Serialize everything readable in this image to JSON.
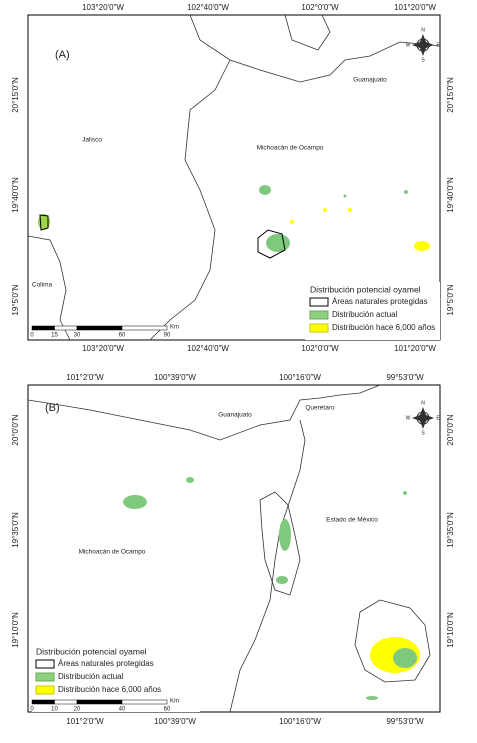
{
  "panels": [
    {
      "label": "(A)",
      "top_ticks": [
        "103°20'0\"W",
        "102°40'0\"W",
        "102°0'0\"W",
        "101°20'0\"W"
      ],
      "bottom_ticks": [
        "103°20'0\"W",
        "102°40'0\"W",
        "102°0'0\"W",
        "101°20'0\"W"
      ],
      "left_ticks": [
        "20°15'0\"N",
        "19°40'0\"N",
        "19°5'0\"N"
      ],
      "right_ticks": [
        "20°15'0\"N",
        "19°40'0\"N",
        "19°5'0\"N"
      ],
      "regions": [
        "Guanajuato",
        "Jalisco",
        "Michoacán de Ocampo",
        "Colima"
      ],
      "legend": {
        "title": "Distribución potencial oyamel",
        "items": [
          "Áreas naturales protegidas",
          "Distribución actual",
          "Distribución hace 6,000 años"
        ]
      },
      "scale": {
        "ticks": [
          "0",
          "15",
          "30",
          "60",
          "90"
        ],
        "unit": "Km"
      },
      "compass": [
        "N",
        "E",
        "S",
        "W"
      ]
    },
    {
      "label": "(B)",
      "top_ticks": [
        "101°2'0\"W",
        "100°39'0\"W",
        "100°16'0\"W",
        "99°53'0\"W"
      ],
      "bottom_ticks": [
        "101°2'0\"W",
        "100°39'0\"W",
        "100°16'0\"W",
        "99°53'0\"W"
      ],
      "left_ticks": [
        "20°0'0\"N",
        "19°35'0\"N",
        "19°10'0\"N"
      ],
      "right_ticks": [
        "20°0'0\"N",
        "19°35'0\"N",
        "19°10'0\"N"
      ],
      "regions": [
        "Guanajuato",
        "Querétaro",
        "Estado de México",
        "Michoacán de Ocampo"
      ],
      "legend": {
        "title": "Distribución potencial oyamel",
        "items": [
          "Áreas naturales protegidas",
          "Distribución actual",
          "Distribución hace 6,000 años"
        ]
      },
      "scale": {
        "ticks": [
          "0",
          "10",
          "20",
          "40",
          "60"
        ],
        "unit": "Km"
      },
      "compass": [
        "N",
        "E",
        "S",
        "W"
      ]
    }
  ]
}
